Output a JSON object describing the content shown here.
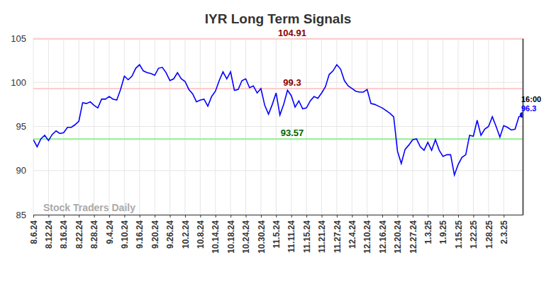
{
  "chart_data": {
    "type": "line",
    "title": "IYR Long Term Signals",
    "watermark": "Stock Traders Daily",
    "categories": [
      "8.6.24",
      null,
      null,
      null,
      "8.12.24",
      null,
      null,
      null,
      "8.16.24",
      null,
      null,
      null,
      "8.22.24",
      null,
      null,
      null,
      "8.28.24",
      null,
      null,
      null,
      "9.4.24",
      null,
      null,
      null,
      "9.10.24",
      null,
      null,
      null,
      "9.16.24",
      null,
      null,
      null,
      "9.20.24",
      null,
      null,
      null,
      "9.26.24",
      null,
      null,
      null,
      "10.2.24",
      null,
      null,
      null,
      "10.8.24",
      null,
      null,
      null,
      "10.14.24",
      null,
      null,
      null,
      "10.18.24",
      null,
      null,
      null,
      "10.24.24",
      null,
      null,
      null,
      "10.30.24",
      null,
      null,
      null,
      "11.5.24",
      null,
      null,
      null,
      "11.11.24",
      null,
      null,
      null,
      "11.15.24",
      null,
      null,
      null,
      "11.21.24",
      null,
      null,
      null,
      "11.27.24",
      null,
      null,
      null,
      "12.4.24",
      null,
      null,
      null,
      "12.10.24",
      null,
      null,
      null,
      "12.16.24",
      null,
      null,
      null,
      "12.20.24",
      null,
      null,
      null,
      "12.27.24",
      null,
      null,
      null,
      "1.3.25",
      null,
      null,
      null,
      "1.9.25",
      null,
      null,
      null,
      "1.15.25",
      null,
      null,
      null,
      "1.22.25",
      null,
      null,
      null,
      "1.28.25",
      null,
      null,
      null,
      "2.3.25",
      null,
      null,
      null,
      null,
      null
    ],
    "values": [
      93.5,
      92.7,
      93.6,
      94.0,
      93.4,
      94.1,
      94.5,
      94.2,
      94.3,
      94.9,
      94.9,
      95.2,
      95.6,
      97.7,
      97.6,
      97.8,
      97.4,
      97.1,
      98.1,
      98.1,
      98.4,
      98.1,
      98.0,
      99.2,
      100.7,
      100.3,
      100.7,
      101.6,
      102.0,
      101.3,
      101.1,
      101.0,
      100.8,
      101.6,
      101.7,
      101.1,
      100.2,
      100.4,
      101.1,
      100.4,
      100.1,
      99.2,
      98.7,
      97.8,
      98.0,
      98.1,
      97.3,
      98.4,
      99.0,
      100.2,
      101.2,
      100.4,
      101.2,
      99.1,
      99.2,
      100.2,
      100.4,
      99.4,
      99.6,
      98.8,
      99.3,
      97.4,
      96.4,
      97.5,
      98.8,
      96.3,
      97.5,
      99.1,
      98.5,
      97.2,
      97.9,
      97.0,
      97.1,
      97.9,
      98.4,
      98.2,
      98.8,
      99.5,
      100.9,
      101.3,
      102.0,
      101.5,
      100.2,
      99.6,
      99.3,
      99.0,
      98.9,
      98.9,
      99.2,
      97.6,
      97.5,
      97.3,
      97.1,
      96.8,
      96.5,
      96.1,
      92.2,
      90.8,
      92.4,
      92.9,
      93.5,
      93.6,
      92.7,
      92.3,
      93.2,
      92.3,
      93.5,
      92.3,
      91.6,
      91.8,
      91.8,
      89.5,
      90.7,
      91.5,
      91.8,
      94.0,
      93.9,
      95.7,
      94.0,
      94.7,
      95.0,
      96.1,
      95.0,
      93.8,
      95.1,
      94.9,
      94.6,
      94.7,
      96.1,
      96.3
    ],
    "color": "#0000ff",
    "ylim": [
      85,
      105
    ],
    "yticks": [
      85,
      90,
      95,
      100,
      105
    ],
    "grid": true,
    "annotations": [
      {
        "value": 104.91,
        "label": "104.91",
        "color": "#ffcccc",
        "label_color": "#8b0000"
      },
      {
        "value": 99.3,
        "label": "99.3",
        "color": "#ffcccc",
        "label_color": "#8b0000"
      },
      {
        "value": 93.57,
        "label": "93.57",
        "color": "#90ee90",
        "label_color": "#006400"
      }
    ],
    "last_point": {
      "time_label": "16:00",
      "value_label": "96.3"
    }
  }
}
